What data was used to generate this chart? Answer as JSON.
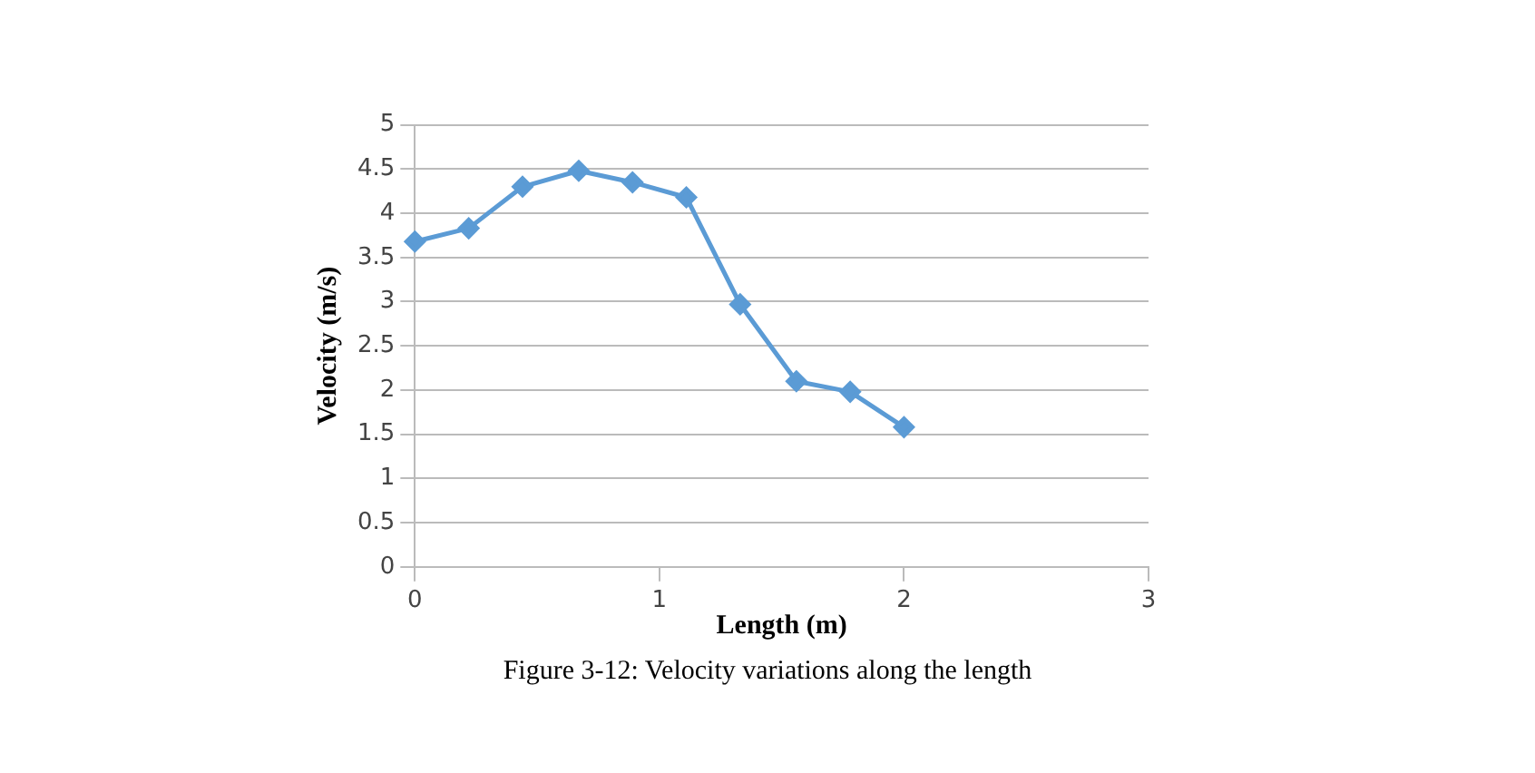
{
  "chart_data": {
    "type": "line",
    "xlabel": "Length (m)",
    "ylabel": "Velocity (m/s)",
    "x": [
      0,
      0.22,
      0.44,
      0.67,
      0.89,
      1.11,
      1.33,
      1.56,
      1.78,
      2.0
    ],
    "series": [
      {
        "color": "#5b9bd5",
        "values": [
          3.68,
          3.83,
          4.3,
          4.48,
          4.35,
          4.18,
          2.97,
          2.1,
          1.98,
          1.58
        ]
      }
    ],
    "xlim": [
      0,
      3
    ],
    "xticks": [
      0,
      1,
      2,
      3
    ],
    "ylim": [
      0,
      5
    ],
    "yticks": [
      0,
      0.5,
      1,
      1.5,
      2,
      2.5,
      3,
      3.5,
      4,
      4.5,
      5
    ],
    "grid": "y",
    "legend": false,
    "marker": "diamond",
    "line_style": "solid",
    "annotations": [
      "Figure 3-12: Velocity variations along the length"
    ]
  }
}
